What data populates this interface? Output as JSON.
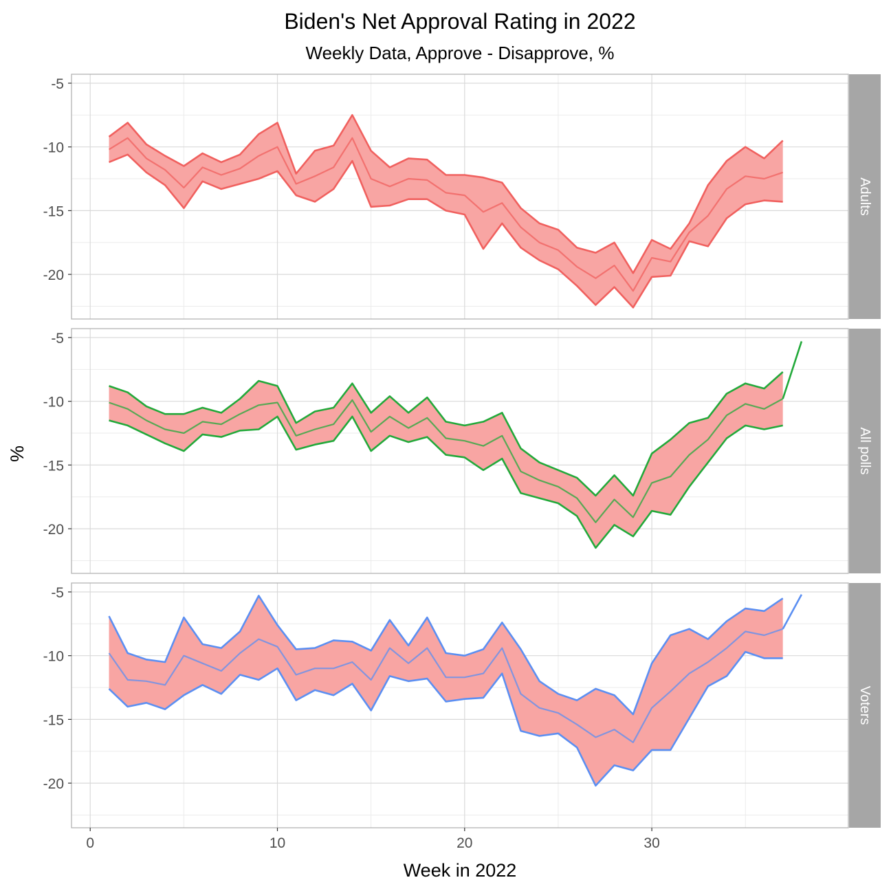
{
  "chart_data": {
    "type": "line",
    "title": "Biden's Net Approval Rating in 2022",
    "subtitle": "Weekly Data, Approve - Disapprove, %",
    "xlabel": "Week in 2022",
    "ylabel": "%",
    "xlim": [
      -1,
      40.5
    ],
    "ylim": [
      -23.5,
      -4.3
    ],
    "x_ticks": [
      0,
      10,
      20,
      30
    ],
    "y_ticks": [
      -5,
      -10,
      -15,
      -20
    ],
    "y_tick_labels": [
      "-5",
      "-10",
      "-15",
      "-20"
    ],
    "x_tick_labels": [
      "0",
      "10",
      "20",
      "30"
    ],
    "grid": true,
    "band_fill": "#f8a5a3",
    "panels": [
      {
        "label": "Adults",
        "color": "#f0605e",
        "x": [
          1,
          2,
          3,
          4,
          5,
          6,
          7,
          8,
          9,
          10,
          11,
          12,
          13,
          14,
          15,
          16,
          17,
          18,
          19,
          20,
          21,
          22,
          23,
          24,
          25,
          26,
          27,
          28,
          29,
          30,
          31,
          32,
          33,
          34,
          35,
          36,
          37
        ],
        "upper": [
          -9.2,
          -8.1,
          -9.8,
          -10.7,
          -11.5,
          -10.5,
          -11.2,
          -10.6,
          -9.0,
          -8.1,
          -12.1,
          -10.3,
          -9.9,
          -7.5,
          -10.3,
          -11.6,
          -10.9,
          -11.0,
          -12.2,
          -12.2,
          -12.4,
          -12.8,
          -14.8,
          -16.0,
          -16.5,
          -17.9,
          -18.3,
          -17.5,
          -19.9,
          -17.3,
          -18.0,
          -16.0,
          -13.0,
          -11.1,
          -10.0,
          -10.9,
          -9.5
        ],
        "mid": [
          -10.2,
          -9.3,
          -10.9,
          -11.8,
          -13.2,
          -11.6,
          -12.2,
          -11.7,
          -10.7,
          -10.0,
          -12.9,
          -12.3,
          -11.6,
          -9.3,
          -12.5,
          -13.1,
          -12.5,
          -12.6,
          -13.6,
          -13.8,
          -15.1,
          -14.4,
          -16.3,
          -17.5,
          -18.1,
          -19.4,
          -20.3,
          -19.3,
          -21.3,
          -18.7,
          -19.0,
          -16.7,
          -15.4,
          -13.3,
          -12.3,
          -12.5,
          -12.0
        ],
        "lower": [
          -11.2,
          -10.6,
          -12.0,
          -13.0,
          -14.8,
          -12.7,
          -13.3,
          -12.9,
          -12.5,
          -11.9,
          -13.8,
          -14.3,
          -13.3,
          -11.1,
          -14.7,
          -14.6,
          -14.1,
          -14.1,
          -15.0,
          -15.3,
          -18.0,
          -16.0,
          -17.9,
          -18.9,
          -19.6,
          -20.9,
          -22.4,
          -21.0,
          -22.6,
          -20.2,
          -20.1,
          -17.4,
          -17.8,
          -15.6,
          -14.5,
          -14.2,
          -14.3
        ],
        "extra": null
      },
      {
        "label": "All polls",
        "color": "#22a93a",
        "x": [
          1,
          2,
          3,
          4,
          5,
          6,
          7,
          8,
          9,
          10,
          11,
          12,
          13,
          14,
          15,
          16,
          17,
          18,
          19,
          20,
          21,
          22,
          23,
          24,
          25,
          26,
          27,
          28,
          29,
          30,
          31,
          32,
          33,
          34,
          35,
          36,
          37
        ],
        "upper": [
          -8.8,
          -9.3,
          -10.4,
          -11.0,
          -11.0,
          -10.5,
          -10.9,
          -9.8,
          -8.4,
          -8.8,
          -11.7,
          -10.8,
          -10.5,
          -8.6,
          -10.9,
          -9.6,
          -10.9,
          -9.7,
          -11.6,
          -11.9,
          -11.6,
          -10.9,
          -13.7,
          -14.8,
          -15.4,
          -16.0,
          -17.4,
          -15.8,
          -17.4,
          -14.1,
          -13.0,
          -11.7,
          -11.3,
          -9.4,
          -8.6,
          -9.0,
          -7.7
        ],
        "mid": [
          -10.1,
          -10.6,
          -11.5,
          -12.2,
          -12.5,
          -11.6,
          -11.8,
          -11.0,
          -10.3,
          -10.1,
          -12.7,
          -12.2,
          -11.8,
          -9.9,
          -12.4,
          -11.2,
          -12.1,
          -11.3,
          -12.9,
          -13.1,
          -13.5,
          -12.7,
          -15.5,
          -16.2,
          -16.7,
          -17.6,
          -19.5,
          -17.7,
          -19.1,
          -16.4,
          -15.9,
          -14.2,
          -13.0,
          -11.1,
          -10.2,
          -10.6,
          -9.8
        ],
        "lower": [
          -11.5,
          -11.9,
          -12.6,
          -13.3,
          -13.9,
          -12.6,
          -12.8,
          -12.3,
          -12.2,
          -11.2,
          -13.8,
          -13.4,
          -13.1,
          -11.2,
          -13.9,
          -12.7,
          -13.2,
          -12.8,
          -14.2,
          -14.4,
          -15.4,
          -14.5,
          -17.2,
          -17.6,
          -18.0,
          -19.0,
          -21.5,
          -19.7,
          -20.6,
          -18.6,
          -18.9,
          -16.7,
          -14.8,
          -12.9,
          -11.9,
          -12.2,
          -11.9
        ],
        "extra": {
          "x": [
            37,
            38
          ],
          "y": [
            -9.8,
            -5.3
          ]
        }
      },
      {
        "label": "Voters",
        "color": "#5b8ff2",
        "x": [
          1,
          2,
          3,
          4,
          5,
          6,
          7,
          8,
          9,
          10,
          11,
          12,
          13,
          14,
          15,
          16,
          17,
          18,
          19,
          20,
          21,
          22,
          23,
          24,
          25,
          26,
          27,
          28,
          29,
          30,
          31,
          32,
          33,
          34,
          35,
          36,
          37
        ],
        "upper": [
          -6.9,
          -9.8,
          -10.3,
          -10.5,
          -7.0,
          -9.1,
          -9.4,
          -8.1,
          -5.3,
          -7.6,
          -9.5,
          -9.4,
          -8.8,
          -8.9,
          -9.6,
          -7.2,
          -9.2,
          -7.0,
          -9.8,
          -10.0,
          -9.5,
          -7.4,
          -9.5,
          -12.0,
          -13.0,
          -13.5,
          -12.6,
          -13.1,
          -14.6,
          -10.6,
          -8.4,
          -7.9,
          -8.7,
          -7.3,
          -6.3,
          -6.5,
          -5.5
        ],
        "mid": [
          -9.8,
          -11.9,
          -12.0,
          -12.3,
          -10.0,
          -10.6,
          -11.2,
          -9.8,
          -8.7,
          -9.3,
          -11.5,
          -11.0,
          -11.0,
          -10.5,
          -11.9,
          -9.4,
          -10.6,
          -9.4,
          -11.7,
          -11.7,
          -11.4,
          -9.4,
          -13.0,
          -14.1,
          -14.5,
          -15.4,
          -16.4,
          -15.8,
          -16.8,
          -14.1,
          -12.8,
          -11.4,
          -10.5,
          -9.4,
          -8.1,
          -8.4,
          -7.9
        ],
        "lower": [
          -12.6,
          -14.0,
          -13.7,
          -14.2,
          -13.1,
          -12.3,
          -13.0,
          -11.5,
          -11.9,
          -11.0,
          -13.5,
          -12.7,
          -13.1,
          -12.2,
          -14.3,
          -11.6,
          -12.0,
          -11.8,
          -13.6,
          -13.4,
          -13.3,
          -11.4,
          -15.9,
          -16.3,
          -16.1,
          -17.2,
          -20.2,
          -18.6,
          -19.0,
          -17.4,
          -17.4,
          -14.9,
          -12.4,
          -11.6,
          -9.7,
          -10.2,
          -10.2
        ],
        "extra": {
          "x": [
            37,
            38
          ],
          "y": [
            -7.9,
            -5.2
          ]
        }
      }
    ]
  }
}
